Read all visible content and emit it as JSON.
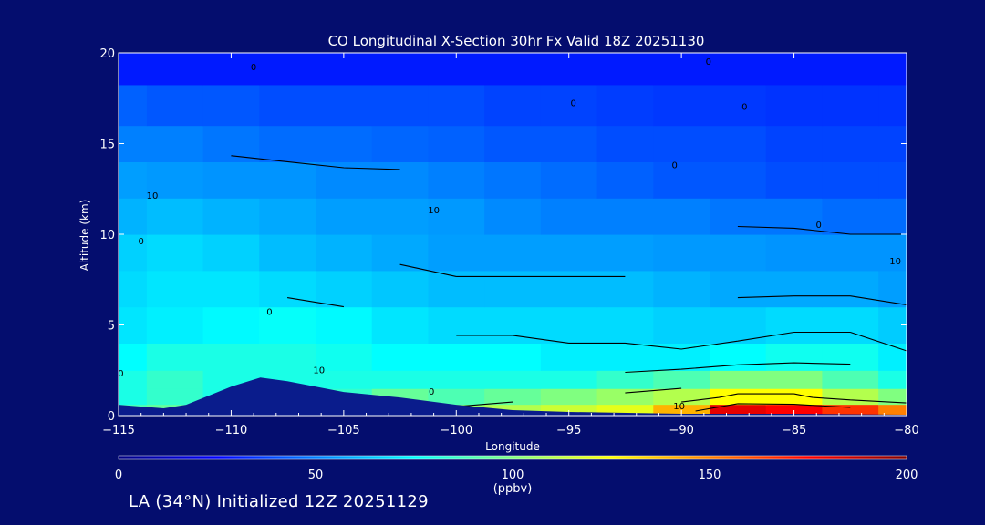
{
  "chart_data": {
    "type": "heatmap",
    "title": "CO Longitudinal X-Section 30hr  Fx Valid 18Z 20251130",
    "xlabel": "Longitude",
    "ylabel": "Altitude (km)",
    "xlim": [
      -115,
      -80
    ],
    "ylim": [
      0,
      20
    ],
    "x_ticks": [
      -115,
      -110,
      -105,
      -100,
      -95,
      -90,
      -85,
      -80
    ],
    "x_tick_labels": [
      "−115",
      "−110",
      "−105",
      "−100",
      "−95",
      "−90",
      "−85",
      "−80"
    ],
    "y_ticks": [
      0,
      5,
      10,
      15,
      20
    ],
    "y_tick_labels": [
      "0",
      "5",
      "10",
      "15",
      "20"
    ],
    "x": [
      -115,
      -112.5,
      -110,
      -107.5,
      -105,
      -102.5,
      -100,
      -97.5,
      -95,
      -92.5,
      -90,
      -87.5,
      -85,
      -82.5,
      -80
    ],
    "y": [
      0.25,
      1,
      2,
      3,
      5,
      7,
      9,
      11,
      13,
      15,
      17,
      19.5
    ],
    "z": [
      [
        90,
        95,
        85,
        80,
        90,
        100,
        105,
        110,
        115,
        120,
        140,
        180,
        175,
        165,
        150
      ],
      [
        80,
        85,
        80,
        75,
        85,
        95,
        90,
        95,
        100,
        105,
        110,
        125,
        125,
        110,
        100
      ],
      [
        80,
        85,
        80,
        80,
        80,
        80,
        80,
        80,
        80,
        85,
        90,
        100,
        100,
        90,
        80
      ],
      [
        75,
        80,
        80,
        80,
        78,
        75,
        75,
        75,
        72,
        72,
        72,
        75,
        78,
        78,
        72
      ],
      [
        70,
        72,
        74,
        76,
        74,
        70,
        68,
        68,
        68,
        68,
        66,
        66,
        68,
        68,
        65
      ],
      [
        68,
        70,
        70,
        68,
        66,
        64,
        62,
        62,
        62,
        62,
        60,
        58,
        58,
        58,
        56
      ],
      [
        66,
        68,
        66,
        62,
        60,
        58,
        56,
        56,
        56,
        56,
        55,
        55,
        54,
        54,
        54
      ],
      [
        60,
        62,
        60,
        58,
        56,
        56,
        55,
        52,
        50,
        50,
        50,
        48,
        48,
        46,
        46
      ],
      [
        56,
        55,
        54,
        54,
        52,
        52,
        50,
        48,
        46,
        44,
        42,
        42,
        40,
        40,
        40
      ],
      [
        50,
        50,
        48,
        46,
        46,
        45,
        44,
        42,
        42,
        40,
        40,
        40,
        38,
        38,
        38
      ],
      [
        44,
        42,
        42,
        40,
        40,
        40,
        40,
        38,
        38,
        37,
        36,
        36,
        35,
        35,
        35
      ],
      [
        30,
        30,
        30,
        30,
        30,
        30,
        30,
        30,
        30,
        30,
        30,
        30,
        30,
        30,
        30
      ]
    ],
    "terrain_km": [
      [
        -115,
        0.6
      ],
      [
        -113,
        0.4
      ],
      [
        -112,
        0.6
      ],
      [
        -110,
        1.6
      ],
      [
        -108.7,
        2.1
      ],
      [
        -107.5,
        1.9
      ],
      [
        -105,
        1.3
      ],
      [
        -102.5,
        1.0
      ],
      [
        -100,
        0.6
      ],
      [
        -97.5,
        0.3
      ],
      [
        -95,
        0.2
      ],
      [
        -90,
        0.1
      ],
      [
        -85,
        0.1
      ],
      [
        -80,
        0.05
      ]
    ],
    "contour_labels": [
      {
        "text": "0",
        "x": -109,
        "y": 19.2
      },
      {
        "text": "0",
        "x": -94.8,
        "y": 17.2
      },
      {
        "text": "0",
        "x": -88.8,
        "y": 19.5
      },
      {
        "text": "0",
        "x": -87.2,
        "y": 17.0
      },
      {
        "text": "0",
        "x": -90.3,
        "y": 13.8
      },
      {
        "text": "10",
        "x": -113.5,
        "y": 12.1
      },
      {
        "text": "10",
        "x": -101,
        "y": 11.3
      },
      {
        "text": "0",
        "x": -114,
        "y": 9.6
      },
      {
        "text": "0",
        "x": -83.9,
        "y": 10.5
      },
      {
        "text": "10",
        "x": -80.5,
        "y": 8.5
      },
      {
        "text": "0",
        "x": -108.3,
        "y": 5.7
      },
      {
        "text": "10",
        "x": -106.1,
        "y": 2.5
      },
      {
        "text": "0",
        "x": -101.1,
        "y": 1.3
      },
      {
        "text": "10",
        "x": -90.1,
        "y": 0.5
      },
      {
        "text": "0",
        "x": -114.9,
        "y": 2.3
      }
    ],
    "colorbar": {
      "min": 0,
      "max": 200,
      "ticks": [
        0,
        50,
        100,
        150,
        200
      ],
      "tick_labels": [
        "0",
        "50",
        "100",
        "150",
        "200"
      ],
      "unit": "(ppbv)"
    },
    "colors": {
      "background": "#040d6e",
      "ramp": [
        "#000080",
        "#0000ff",
        "#0080ff",
        "#00ffff",
        "#80ff80",
        "#ffff00",
        "#ff8000",
        "#ff0000",
        "#800000"
      ],
      "terrain": "#0a1c8c",
      "contour": "#000000"
    }
  },
  "footer": {
    "text": "LA (34°N) Initialized 12Z 20251129"
  }
}
